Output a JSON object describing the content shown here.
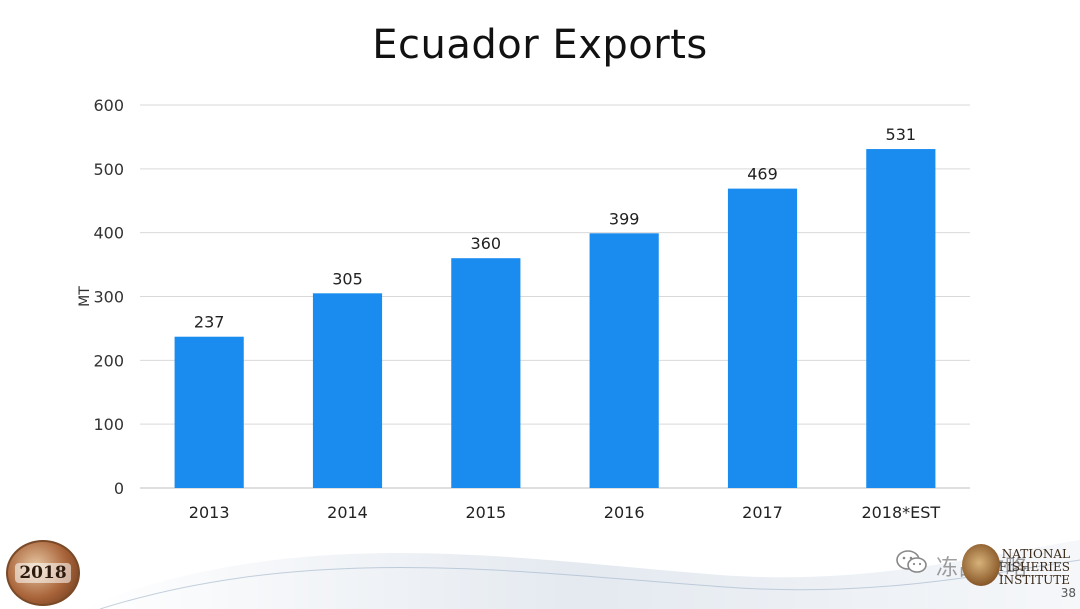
{
  "slide": {
    "title": "Ecuador Exports",
    "page_number": "38",
    "logo_left_text": "2018",
    "logo_right_text": "NATIONAL FISHERIES INSTITUTE",
    "watermark_text": "冻品攻略"
  },
  "chart_data": {
    "type": "bar",
    "title": "Ecuador Exports",
    "xlabel": "",
    "ylabel": "MT",
    "categories": [
      "2013",
      "2014",
      "2015",
      "2016",
      "2017",
      "2018*EST"
    ],
    "values": [
      237,
      305,
      360,
      399,
      469,
      531
    ],
    "ylim": [
      0,
      600
    ],
    "yticks": [
      0,
      100,
      200,
      300,
      400,
      500,
      600
    ],
    "grid": true,
    "legend": "none",
    "bar_color": "#1a8cf0",
    "data_labels": true
  }
}
